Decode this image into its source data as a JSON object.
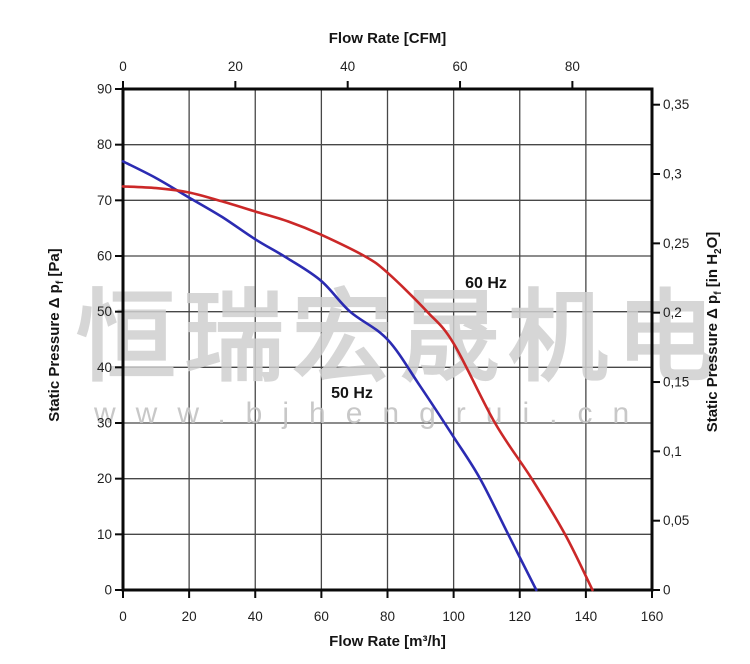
{
  "watermark": {
    "cn_text": "恒瑞宏晟机电",
    "url_text": "www.bjhengrui.cn"
  },
  "titles": {
    "top": "Flow Rate [CFM]",
    "bottom": "Flow Rate [m³/h]",
    "left": {
      "pre": "Static Pressure Δ p",
      "sub": "f",
      "post": " [Pa]"
    },
    "right": {
      "pre": "Static Pressure Δ p",
      "sub": "f",
      "mid": " [in H",
      "sub2": "2",
      "post": "O]"
    }
  },
  "curve_labels": {
    "hz50": "50 Hz",
    "hz60": "60 Hz"
  },
  "chart_data": {
    "type": "line",
    "title": "",
    "xlabel": "Flow Rate [m³/h]",
    "xlabel_secondary_top": "Flow Rate [CFM]",
    "ylabel": "Static Pressure Δpf [Pa]",
    "ylabel_secondary_right": "Static Pressure Δpf [in H2O]",
    "xlim_m3h": [
      0,
      160
    ],
    "ylim_pa": [
      0,
      90
    ],
    "grid": true,
    "legend": "labels on plot",
    "axes": {
      "bottom_ticks_m3h": [
        0,
        20,
        40,
        60,
        80,
        100,
        120,
        140,
        160
      ],
      "top_ticks_cfm": [
        0,
        20,
        40,
        60,
        80
      ],
      "cfm_to_m3h": 1.699,
      "left_ticks_pa": [
        0,
        10,
        20,
        30,
        40,
        50,
        60,
        70,
        80,
        90
      ],
      "right_ticks_inH2O": [
        {
          "label": "0",
          "pa": 0
        },
        {
          "label": "0,05",
          "pa": 12.45
        },
        {
          "label": "0,1",
          "pa": 24.91
        },
        {
          "label": "0,15",
          "pa": 37.36
        },
        {
          "label": "0,2",
          "pa": 49.82
        },
        {
          "label": "0,25",
          "pa": 62.27
        },
        {
          "label": "0,3",
          "pa": 74.73
        },
        {
          "label": "0,35",
          "pa": 87.18
        }
      ]
    },
    "series": [
      {
        "name": "50 Hz",
        "color": "#2b2bb2",
        "points_m3h_pa": [
          [
            0,
            77
          ],
          [
            10,
            74
          ],
          [
            20,
            70.5
          ],
          [
            30,
            67
          ],
          [
            40,
            63
          ],
          [
            50,
            59.5
          ],
          [
            60,
            55.5
          ],
          [
            68.7,
            50
          ],
          [
            80,
            45
          ],
          [
            90,
            36.5
          ],
          [
            100,
            27.5
          ],
          [
            108,
            20
          ],
          [
            116.5,
            10
          ],
          [
            125,
            0
          ]
        ]
      },
      {
        "name": "60 Hz",
        "color": "#cb2828",
        "points_m3h_pa": [
          [
            0,
            72.5
          ],
          [
            10,
            72.2
          ],
          [
            20,
            71.4
          ],
          [
            30,
            69.8
          ],
          [
            40,
            68
          ],
          [
            50,
            66.2
          ],
          [
            60,
            63.8
          ],
          [
            73,
            60
          ],
          [
            80,
            57
          ],
          [
            92,
            50
          ],
          [
            100,
            44.3
          ],
          [
            112.5,
            30
          ],
          [
            123.6,
            20
          ],
          [
            133.7,
            10
          ],
          [
            142,
            0
          ]
        ]
      }
    ],
    "colors": {
      "grid": "#474747",
      "axis": "#0a0a0a",
      "tick_text": "#1f1f1f",
      "watermark_cn": "#d0d0d0",
      "watermark_url": "#c3c3c3"
    }
  }
}
